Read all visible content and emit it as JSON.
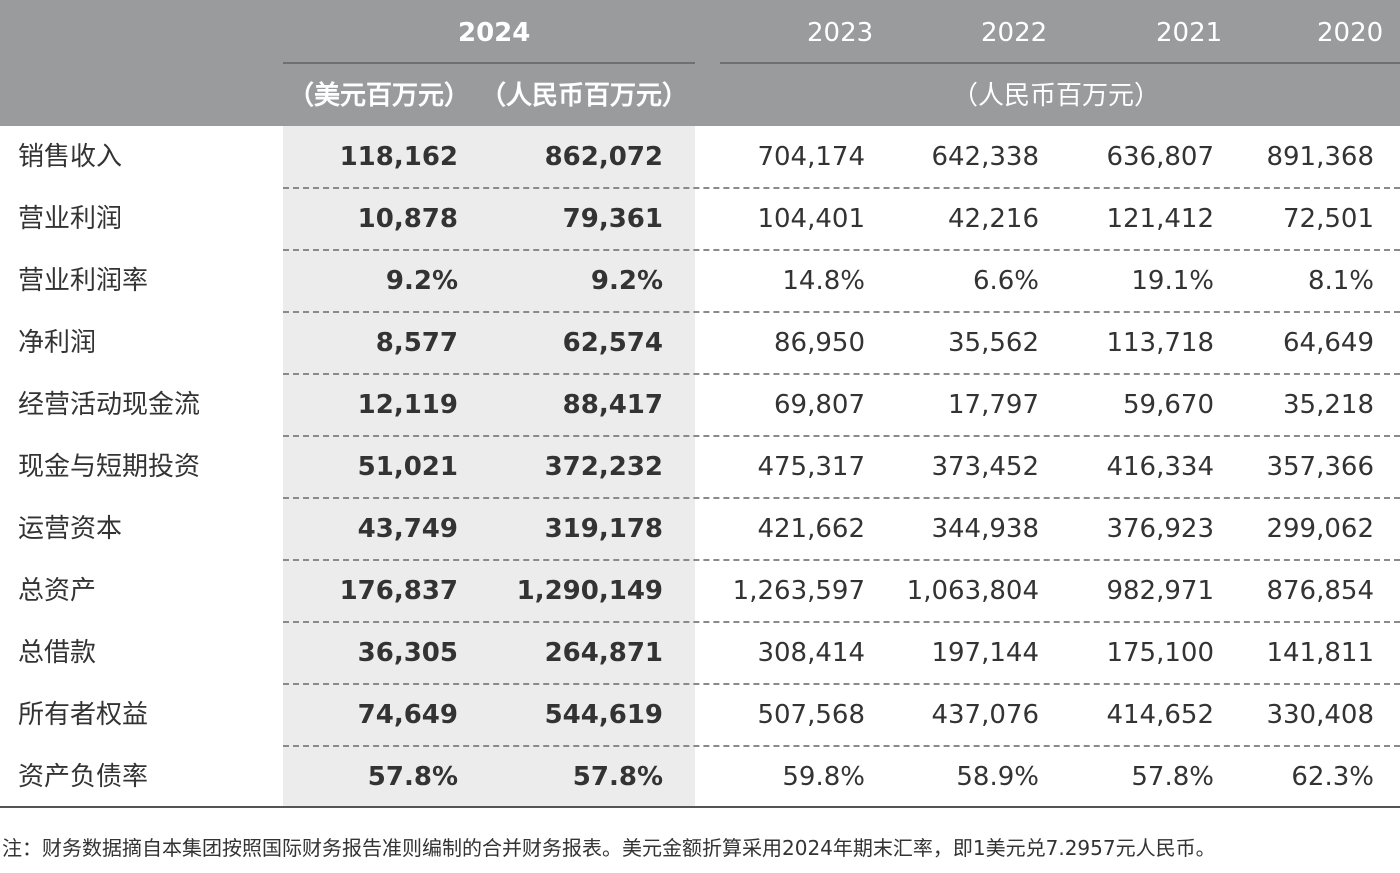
{
  "header": {
    "year_current": "2024",
    "years_prior": [
      "2023",
      "2022",
      "2021",
      "2020"
    ],
    "unit_usd": "（美元百万元）",
    "unit_rmb": "（人民币百万元）",
    "unit_prior": "（人民币百万元）"
  },
  "rows": [
    {
      "label": "销售收入",
      "usd": "118,162",
      "rmb": "862,072",
      "y2023": "704,174",
      "y2022": "642,338",
      "y2021": "636,807",
      "y2020": "891,368"
    },
    {
      "label": "营业利润",
      "usd": "10,878",
      "rmb": "79,361",
      "y2023": "104,401",
      "y2022": "42,216",
      "y2021": "121,412",
      "y2020": "72,501"
    },
    {
      "label": "营业利润率",
      "usd": "9.2%",
      "rmb": "9.2%",
      "y2023": "14.8%",
      "y2022": "6.6%",
      "y2021": "19.1%",
      "y2020": "8.1%"
    },
    {
      "label": "净利润",
      "usd": "8,577",
      "rmb": "62,574",
      "y2023": "86,950",
      "y2022": "35,562",
      "y2021": "113,718",
      "y2020": "64,649"
    },
    {
      "label": "经营活动现金流",
      "usd": "12,119",
      "rmb": "88,417",
      "y2023": "69,807",
      "y2022": "17,797",
      "y2021": "59,670",
      "y2020": "35,218"
    },
    {
      "label": "现金与短期投资",
      "usd": "51,021",
      "rmb": "372,232",
      "y2023": "475,317",
      "y2022": "373,452",
      "y2021": "416,334",
      "y2020": "357,366"
    },
    {
      "label": "运营资本",
      "usd": "43,749",
      "rmb": "319,178",
      "y2023": "421,662",
      "y2022": "344,938",
      "y2021": "376,923",
      "y2020": "299,062"
    },
    {
      "label": "总资产",
      "usd": "176,837",
      "rmb": "1,290,149",
      "y2023": "1,263,597",
      "y2022": "1,063,804",
      "y2021": "982,971",
      "y2020": "876,854"
    },
    {
      "label": "总借款",
      "usd": "36,305",
      "rmb": "264,871",
      "y2023": "308,414",
      "y2022": "197,144",
      "y2021": "175,100",
      "y2020": "141,811"
    },
    {
      "label": "所有者权益",
      "usd": "74,649",
      "rmb": "544,619",
      "y2023": "507,568",
      "y2022": "437,076",
      "y2021": "414,652",
      "y2020": "330,408"
    },
    {
      "label": "资产负债率",
      "usd": "57.8%",
      "rmb": "57.8%",
      "y2023": "59.8%",
      "y2022": "58.9%",
      "y2021": "57.8%",
      "y2020": "62.3%"
    }
  ],
  "note": "注：财务数据摘自本集团按照国际财务报告准则编制的合并财务报表。美元金额折算采用2024年期末汇率，即1美元兑7.2957元人民币。",
  "colors": {
    "header_bg": "#9a9b9d",
    "highlight_bg": "#ececec",
    "text": "#333333"
  }
}
